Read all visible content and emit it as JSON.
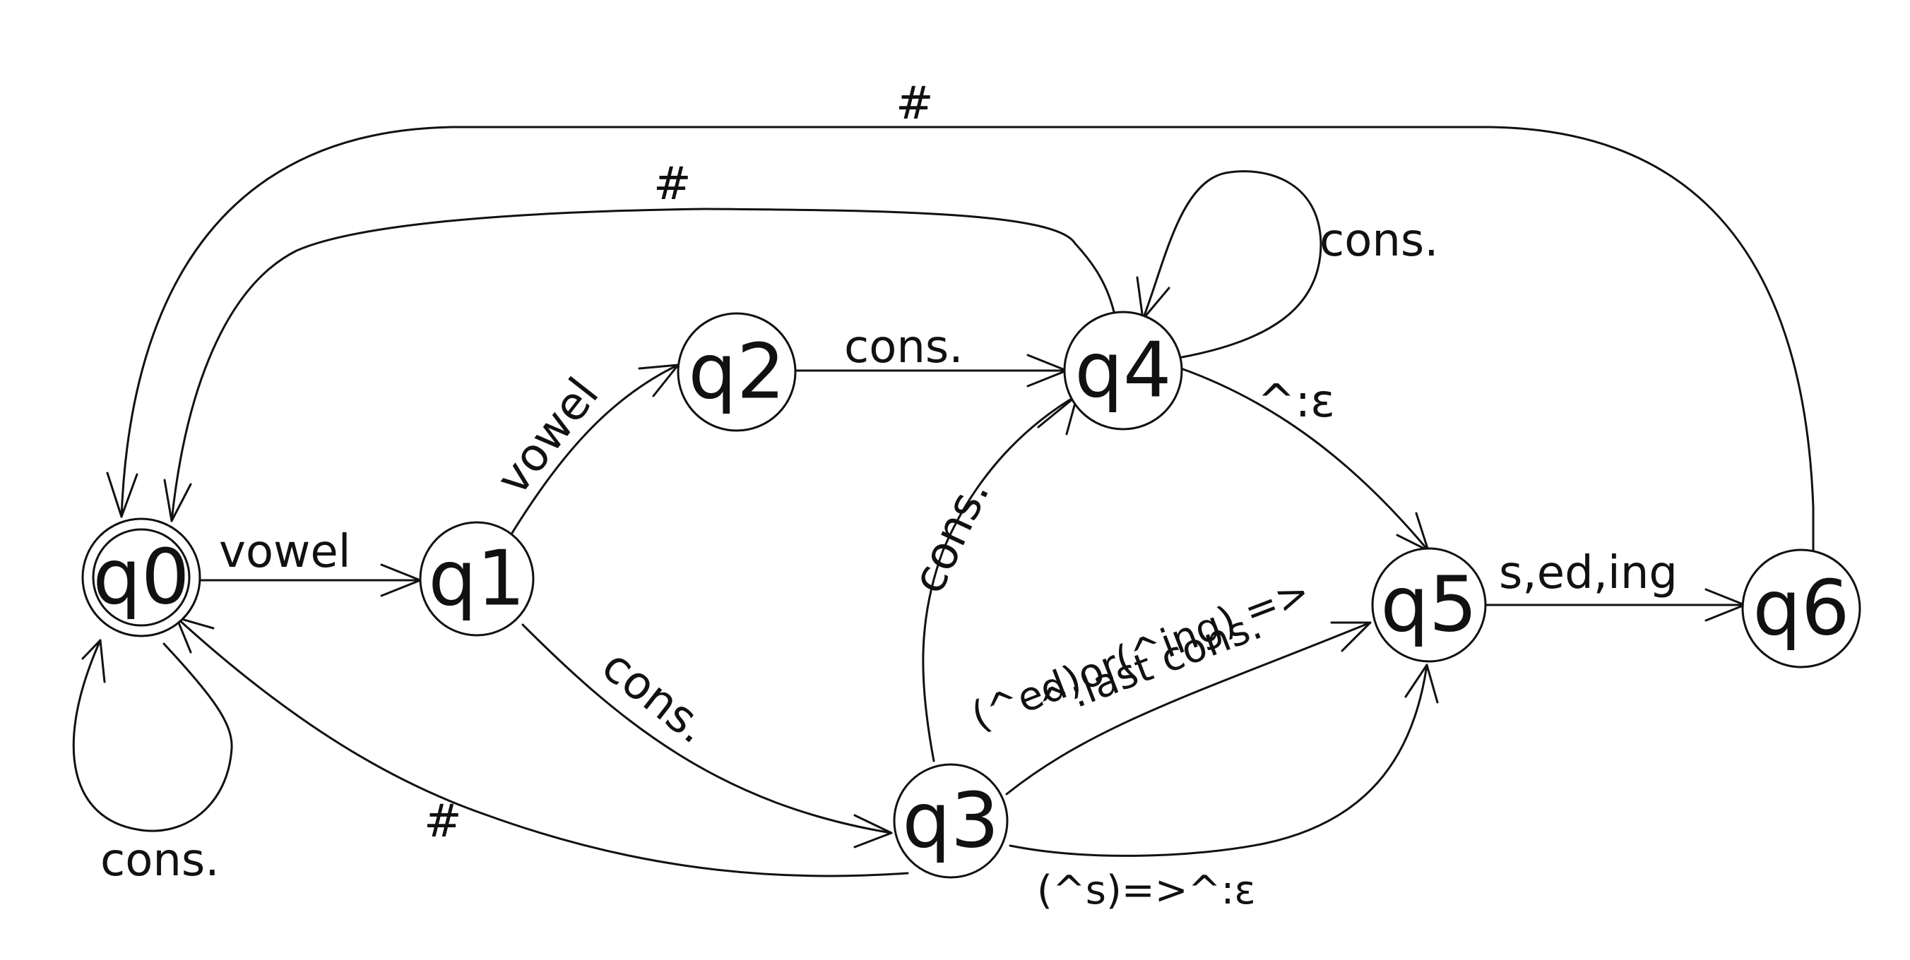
{
  "diagram": {
    "type": "finite-state-automaton",
    "states": [
      {
        "id": "q0",
        "label": "q0",
        "accepting": true
      },
      {
        "id": "q1",
        "label": "q1",
        "accepting": false
      },
      {
        "id": "q2",
        "label": "q2",
        "accepting": false
      },
      {
        "id": "q3",
        "label": "q3",
        "accepting": false
      },
      {
        "id": "q4",
        "label": "q4",
        "accepting": false
      },
      {
        "id": "q5",
        "label": "q5",
        "accepting": false
      },
      {
        "id": "q6",
        "label": "q6",
        "accepting": false
      }
    ],
    "transitions": [
      {
        "from": "q0",
        "to": "q0",
        "label": "cons."
      },
      {
        "from": "q0",
        "to": "q1",
        "label": "vowel"
      },
      {
        "from": "q1",
        "to": "q2",
        "label": "vowel"
      },
      {
        "from": "q1",
        "to": "q3",
        "label": "cons."
      },
      {
        "from": "q2",
        "to": "q4",
        "label": "cons."
      },
      {
        "from": "q4",
        "to": "q4",
        "label": "cons."
      },
      {
        "from": "q4",
        "to": "q0",
        "label": "#"
      },
      {
        "from": "q6",
        "to": "q0",
        "label": "#"
      },
      {
        "from": "q3",
        "to": "q0",
        "label": "#"
      },
      {
        "from": "q3",
        "to": "q4",
        "label": "cons."
      },
      {
        "from": "q4",
        "to": "q5",
        "label": "^:ε"
      },
      {
        "from": "q3",
        "to": "q5",
        "label": "(^ed)or(^ing) =>",
        "label_line2": "^:last cons."
      },
      {
        "from": "q3",
        "to": "q5",
        "label": "(^s)=>^:ε"
      },
      {
        "from": "q5",
        "to": "q6",
        "label": "s,ed,ing"
      }
    ]
  }
}
